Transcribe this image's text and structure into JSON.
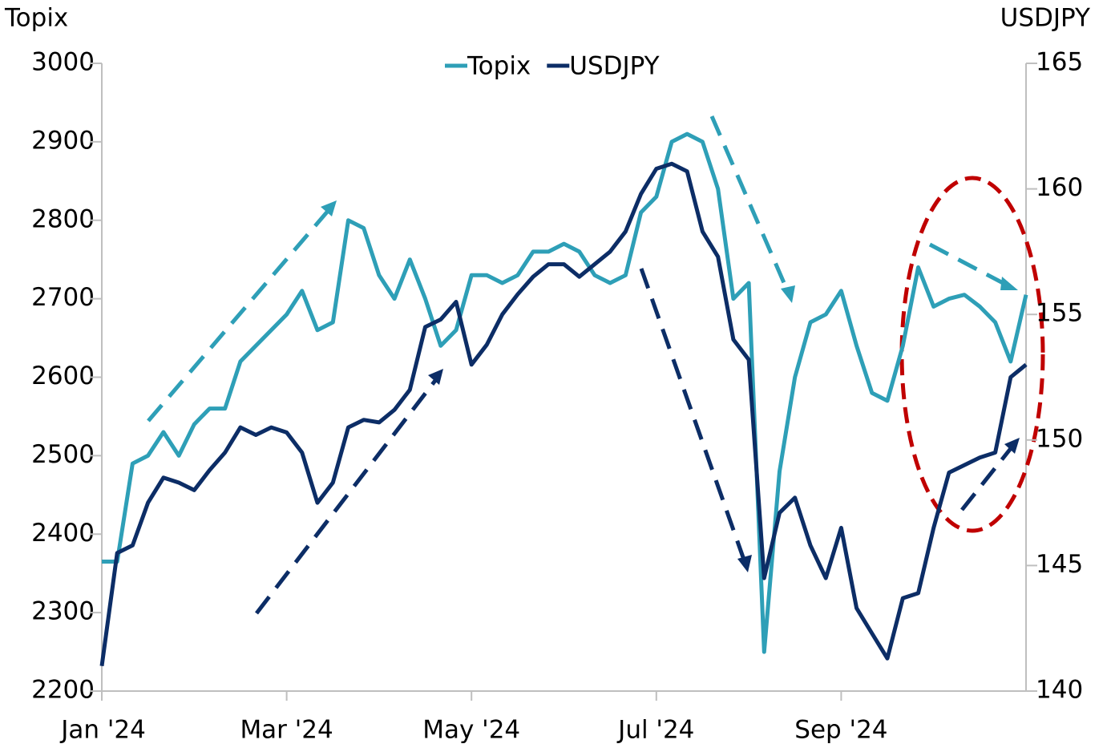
{
  "chart_data": {
    "type": "line",
    "left_axis_title": "Topix",
    "right_axis_title": "USDJPY",
    "categories": [
      "Jan '24",
      null,
      null,
      null,
      null,
      null,
      null,
      null,
      null,
      null,
      null,
      null,
      "Mar '24",
      null,
      null,
      null,
      null,
      null,
      null,
      null,
      null,
      null,
      null,
      null,
      "May '24",
      null,
      null,
      null,
      null,
      null,
      null,
      null,
      null,
      null,
      null,
      null,
      "Jul '24",
      null,
      null,
      null,
      null,
      null,
      null,
      null,
      null,
      null,
      null,
      null,
      "Sep '24",
      null,
      null,
      null,
      null,
      null,
      null,
      null,
      null,
      null,
      null,
      null,
      null
    ],
    "series": [
      {
        "name": "Topix",
        "color": "#2e9fb7",
        "axis": "y",
        "values": [
          2365,
          2365,
          2490,
          2500,
          2530,
          2500,
          2540,
          2560,
          2560,
          2620,
          2640,
          2660,
          2680,
          2710,
          2660,
          2670,
          2800,
          2790,
          2730,
          2700,
          2750,
          2700,
          2640,
          2660,
          2730,
          2730,
          2720,
          2730,
          2760,
          2760,
          2770,
          2760,
          2730,
          2720,
          2730,
          2810,
          2830,
          2900,
          2910,
          2900,
          2840,
          2700,
          2720,
          2250,
          2480,
          2600,
          2670,
          2680,
          2710,
          2640,
          2580,
          2570,
          2640,
          2740,
          2690,
          2700,
          2705,
          2690,
          2670,
          2620,
          2705
        ]
      },
      {
        "name": "USDJPY",
        "color": "#0c2d66",
        "axis": "y2",
        "values": [
          141,
          145.5,
          145.8,
          147.5,
          148.5,
          148.3,
          148,
          148.8,
          149.5,
          150.5,
          150.2,
          150.5,
          150.3,
          149.5,
          147.5,
          148.3,
          150.5,
          150.8,
          150.7,
          151.2,
          152,
          154.5,
          154.8,
          155.5,
          153,
          153.8,
          155,
          155.8,
          156.5,
          157,
          157,
          156.5,
          157,
          157.5,
          158.3,
          159.8,
          160.8,
          161,
          160.7,
          158.3,
          157.3,
          154,
          153.2,
          144.5,
          147.1,
          147.7,
          145.8,
          144.5,
          146.5,
          143.3,
          142.3,
          141.3,
          143.7,
          143.9,
          146.5,
          148.7,
          149,
          149.3,
          149.5,
          152.5,
          153
        ]
      }
    ],
    "ylim": [
      2200,
      3000
    ],
    "yticks": [
      2200,
      2300,
      2400,
      2500,
      2600,
      2700,
      2800,
      2900,
      3000
    ],
    "y2lim": [
      140,
      165
    ],
    "y2ticks": [
      140,
      145,
      150,
      155,
      160,
      165
    ],
    "legend": "top"
  }
}
